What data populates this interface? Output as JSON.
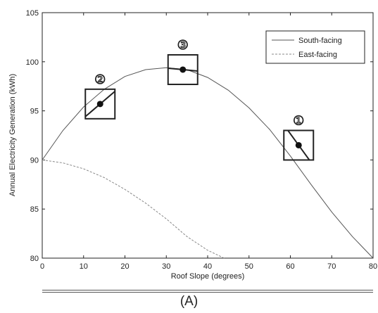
{
  "chart_data": {
    "type": "line",
    "xlabel": "Roof Slope (degrees)",
    "ylabel": "Annual Electricity Generation (kWh)",
    "xlim": [
      0,
      80
    ],
    "ylim": [
      80,
      105
    ],
    "xticks": [
      0,
      10,
      20,
      30,
      40,
      50,
      60,
      70,
      80
    ],
    "yticks": [
      80,
      85,
      90,
      95,
      100,
      105
    ],
    "grid": false,
    "legend_position": "top-right",
    "series": [
      {
        "name": "South-facing",
        "style": "solid",
        "color": "#555555",
        "x": [
          0,
          5,
          10,
          15,
          20,
          25,
          30,
          35,
          40,
          45,
          50,
          55,
          60,
          65,
          70,
          75,
          80
        ],
        "y": [
          90.0,
          93.0,
          95.4,
          97.2,
          98.5,
          99.2,
          99.4,
          99.2,
          98.4,
          97.1,
          95.3,
          93.1,
          90.4,
          87.5,
          84.7,
          82.2,
          80.0
        ]
      },
      {
        "name": "East-facing",
        "style": "dashed",
        "color": "#888888",
        "x": [
          0,
          5,
          10,
          15,
          20,
          25,
          30,
          35,
          40,
          44
        ],
        "y": [
          90.0,
          89.7,
          89.1,
          88.2,
          87.0,
          85.6,
          84.0,
          82.2,
          80.8,
          80.0
        ]
      }
    ],
    "annotations": [
      {
        "label": "②",
        "x": 14,
        "y": 95.7
      },
      {
        "label": "③",
        "x": 34,
        "y": 99.2
      },
      {
        "label": "①",
        "x": 62,
        "y": 91.5
      }
    ]
  },
  "caption": "(A)"
}
